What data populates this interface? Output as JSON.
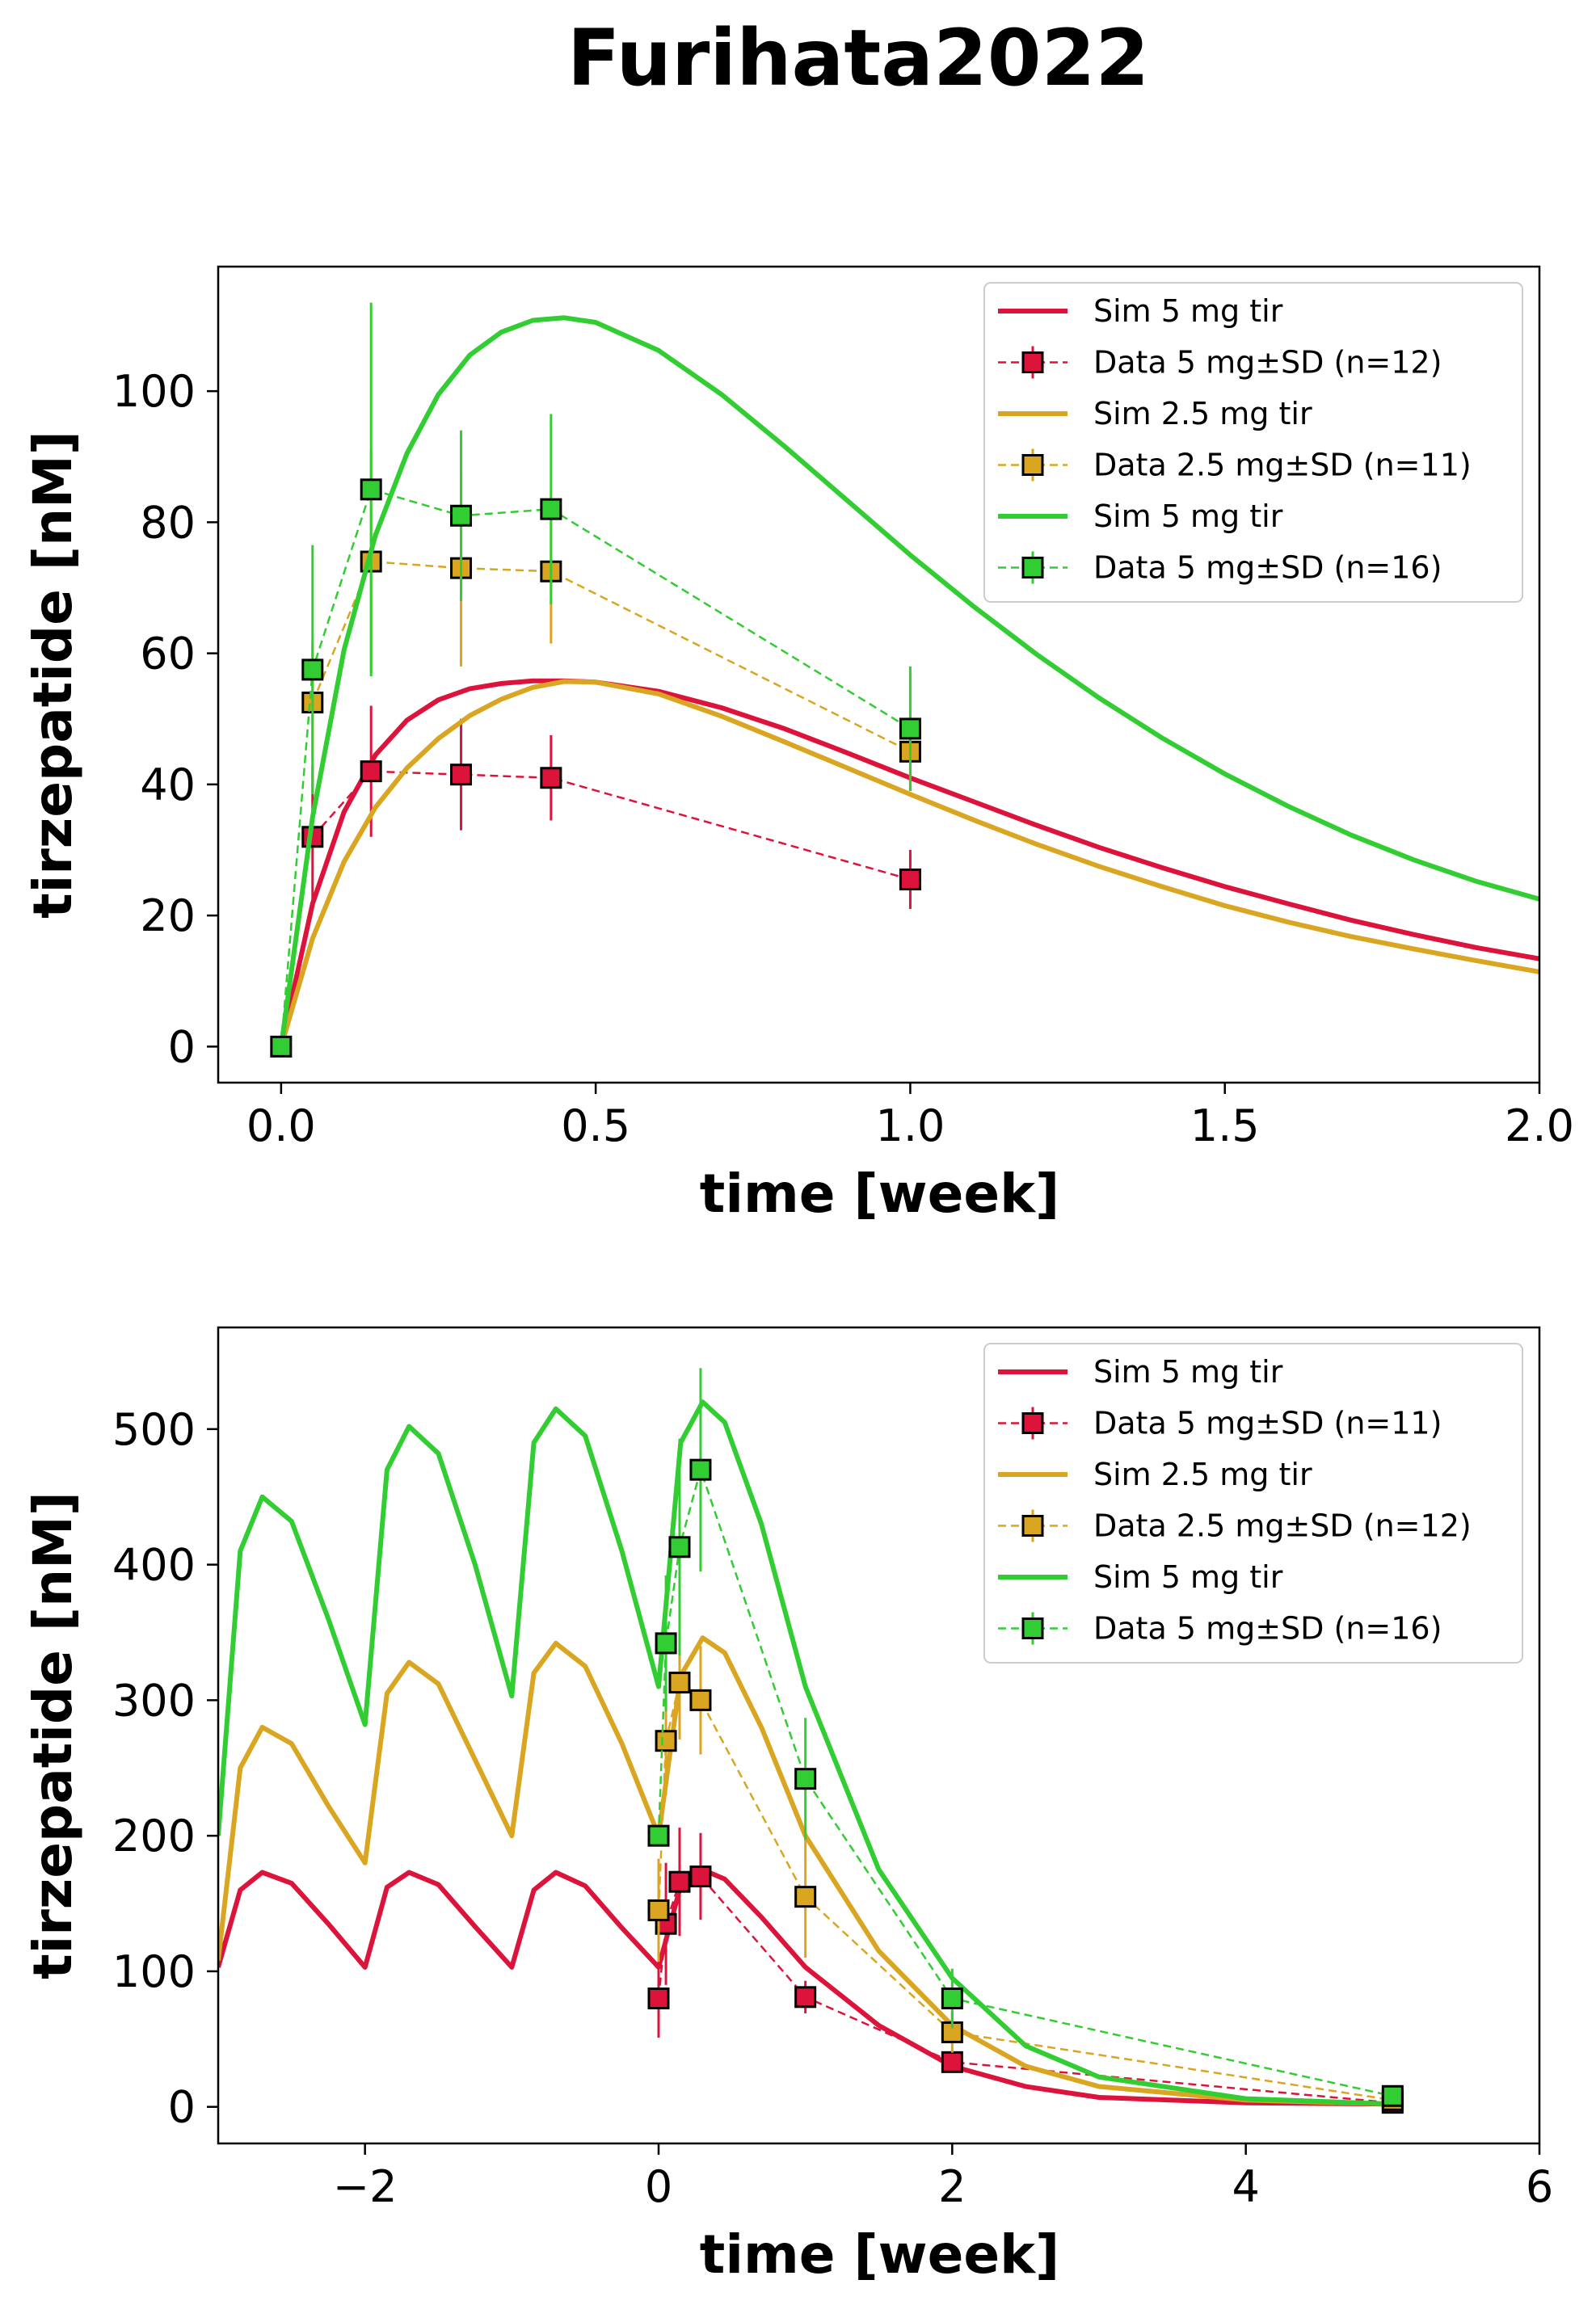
{
  "suptitle": "Furihata2022",
  "colors": {
    "red": "#dc143c",
    "gold": "#daa520",
    "green": "#32cd32"
  },
  "chart_data": [
    {
      "type": "line",
      "xlabel": "time [week]",
      "ylabel": "tirzepatide [nM]",
      "xlim": [
        -0.1,
        2.0
      ],
      "ylim": [
        -5.5,
        119
      ],
      "xticks": [
        0.0,
        0.5,
        1.0,
        1.5,
        2.0
      ],
      "xtick_labels": [
        "0.0",
        "0.5",
        "1.0",
        "1.5",
        "2.0"
      ],
      "yticks": [
        0,
        20,
        40,
        60,
        80,
        100
      ],
      "ytick_labels": [
        "0",
        "20",
        "40",
        "60",
        "80",
        "100"
      ],
      "legend_position": "upper right",
      "grid": false,
      "series": [
        {
          "name": "Sim 5 mg tir",
          "kind": "sim",
          "color": "#dc143c",
          "x": [
            0,
            0.05,
            0.1,
            0.15,
            0.2,
            0.25,
            0.3,
            0.35,
            0.4,
            0.45,
            0.5,
            0.6,
            0.7,
            0.8,
            0.9,
            1.0,
            1.1,
            1.2,
            1.3,
            1.4,
            1.5,
            1.6,
            1.7,
            1.8,
            1.9,
            2.0
          ],
          "y": [
            0,
            21.8,
            35.8,
            44.5,
            49.8,
            52.9,
            54.6,
            55.4,
            55.8,
            55.8,
            55.6,
            54.2,
            51.7,
            48.5,
            44.8,
            41.0,
            37.4,
            33.8,
            30.4,
            27.3,
            24.4,
            21.8,
            19.3,
            17.1,
            15.1,
            13.4
          ]
        },
        {
          "name": "Data 5 mg±SD (n=12)",
          "kind": "data",
          "color": "#dc143c",
          "x": [
            0.05,
            0.143,
            0.286,
            0.429,
            1.0
          ],
          "y": [
            32,
            42,
            41.5,
            41,
            25.5
          ],
          "sd": [
            11,
            10,
            8.5,
            6.5,
            4.5
          ]
        },
        {
          "name": "Sim 2.5 mg tir",
          "kind": "sim",
          "color": "#daa520",
          "x": [
            0,
            0.05,
            0.1,
            0.15,
            0.2,
            0.25,
            0.3,
            0.35,
            0.4,
            0.45,
            0.5,
            0.6,
            0.7,
            0.8,
            0.9,
            1.0,
            1.1,
            1.2,
            1.3,
            1.4,
            1.5,
            1.6,
            1.7,
            1.8,
            1.9,
            2.0
          ],
          "y": [
            0,
            16.5,
            28.2,
            36.5,
            42.5,
            47.0,
            50.5,
            53.0,
            54.8,
            55.7,
            55.6,
            53.8,
            50.4,
            46.5,
            42.5,
            38.5,
            34.6,
            30.9,
            27.5,
            24.4,
            21.5,
            19.0,
            16.8,
            14.9,
            13.1,
            11.4
          ]
        },
        {
          "name": "Data 2.5 mg±SD (n=11)",
          "kind": "data",
          "color": "#daa520",
          "x": [
            0.05,
            0.143,
            0.286,
            0.429,
            1.0
          ],
          "y": [
            52.5,
            74,
            73,
            72.5,
            45
          ],
          "sd": [
            9,
            17,
            15,
            11,
            6
          ]
        },
        {
          "name": "Sim 5 mg tir",
          "kind": "sim",
          "color": "#32cd32",
          "x": [
            0,
            0.05,
            0.1,
            0.15,
            0.2,
            0.25,
            0.3,
            0.35,
            0.4,
            0.45,
            0.5,
            0.6,
            0.7,
            0.8,
            0.9,
            1.0,
            1.1,
            1.2,
            1.3,
            1.4,
            1.5,
            1.6,
            1.7,
            1.8,
            1.9,
            2.0
          ],
          "y": [
            0,
            35.0,
            60.5,
            78.0,
            90.5,
            99.5,
            105.5,
            109.0,
            110.8,
            111.2,
            110.5,
            106.2,
            99.5,
            91.6,
            83.3,
            75.0,
            67.2,
            59.9,
            53.2,
            47.1,
            41.6,
            36.7,
            32.3,
            28.5,
            25.2,
            22.5
          ]
        },
        {
          "name": "Data 5 mg±SD (n=16)",
          "kind": "data",
          "color": "#32cd32",
          "x": [
            0,
            0.05,
            0.143,
            0.286,
            0.429,
            1.0
          ],
          "y": [
            0,
            57.5,
            85,
            81,
            82,
            48.5
          ],
          "sd": [
            0,
            19,
            28.5,
            13,
            14.5,
            9.5
          ]
        }
      ]
    },
    {
      "type": "line",
      "xlabel": "time [week]",
      "ylabel": "tirzepatide [nM]",
      "xlim": [
        -3,
        6
      ],
      "ylim": [
        -27,
        575
      ],
      "xticks": [
        -2,
        0,
        2,
        4,
        6
      ],
      "xtick_labels": [
        "−2",
        "0",
        "2",
        "4",
        "6"
      ],
      "yticks": [
        0,
        100,
        200,
        300,
        400,
        500
      ],
      "ytick_labels": [
        "0",
        "100",
        "200",
        "300",
        "400",
        "500"
      ],
      "legend_position": "upper right",
      "grid": false,
      "series": [
        {
          "name": "Sim 5 mg tir",
          "kind": "sim",
          "color": "#dc143c",
          "x": [
            -3,
            -2.85,
            -2.7,
            -2.5,
            -2.25,
            -2.0,
            -1.85,
            -1.7,
            -1.5,
            -1.25,
            -1.0,
            -0.85,
            -0.7,
            -0.5,
            -0.25,
            0.0,
            0.15,
            0.3,
            0.45,
            0.7,
            1.0,
            1.5,
            2.0,
            2.5,
            3.0,
            4.0,
            5.0
          ],
          "y": [
            103,
            160,
            173,
            165,
            135,
            103,
            162,
            173,
            164,
            133,
            103,
            160,
            173,
            163,
            132,
            103,
            163,
            175,
            168,
            140,
            103,
            60,
            30,
            15,
            7,
            3,
            2
          ]
        },
        {
          "name": "Data 5 mg±SD (n=11)",
          "kind": "data",
          "color": "#dc143c",
          "x": [
            0,
            0.05,
            0.143,
            0.286,
            1.0,
            2.0,
            5.0
          ],
          "y": [
            80,
            135,
            166,
            170,
            81,
            33,
            3
          ],
          "sd": [
            29,
            45,
            40,
            32,
            12,
            7,
            2
          ]
        },
        {
          "name": "Sim 2.5 mg tir",
          "kind": "sim",
          "color": "#daa520",
          "x": [
            -3,
            -2.85,
            -2.7,
            -2.5,
            -2.25,
            -2.0,
            -1.85,
            -1.7,
            -1.5,
            -1.25,
            -1.0,
            -0.85,
            -0.7,
            -0.5,
            -0.25,
            0.0,
            0.15,
            0.3,
            0.45,
            0.7,
            1.0,
            1.5,
            2.0,
            2.5,
            3.0,
            4.0,
            5.0
          ],
          "y": [
            108,
            250,
            280,
            268,
            222,
            180,
            305,
            328,
            312,
            256,
            200,
            320,
            342,
            325,
            268,
            200,
            318,
            346,
            335,
            280,
            200,
            115,
            60,
            30,
            15,
            5,
            2
          ]
        },
        {
          "name": "Data 2.5 mg±SD (n=12)",
          "kind": "data",
          "color": "#daa520",
          "x": [
            0,
            0.05,
            0.143,
            0.286,
            1.0,
            2.0,
            5.0
          ],
          "y": [
            145,
            270,
            313,
            300,
            155,
            55,
            5
          ],
          "sd": [
            38,
            40,
            42,
            40,
            45,
            15,
            3
          ]
        },
        {
          "name": "Sim 5 mg tir",
          "kind": "sim",
          "color": "#32cd32",
          "x": [
            -3,
            -2.85,
            -2.7,
            -2.5,
            -2.25,
            -2.0,
            -1.85,
            -1.7,
            -1.5,
            -1.25,
            -1.0,
            -0.85,
            -0.7,
            -0.5,
            -0.25,
            0.0,
            0.15,
            0.3,
            0.45,
            0.7,
            1.0,
            1.5,
            2.0,
            2.5,
            3.0,
            4.0,
            5.0
          ],
          "y": [
            200,
            410,
            450,
            432,
            360,
            282,
            470,
            502,
            482,
            400,
            303,
            490,
            515,
            495,
            410,
            310,
            490,
            520,
            505,
            430,
            310,
            175,
            95,
            45,
            22,
            6,
            2
          ]
        },
        {
          "name": "Data 5 mg±SD (n=16)",
          "kind": "data",
          "color": "#32cd32",
          "x": [
            0,
            0.05,
            0.143,
            0.286,
            1.0,
            2.0,
            5.0
          ],
          "y": [
            200,
            342,
            413,
            470,
            242,
            80,
            8
          ],
          "sd": [
            0,
            50,
            80,
            75,
            45,
            22,
            4
          ]
        }
      ]
    }
  ]
}
